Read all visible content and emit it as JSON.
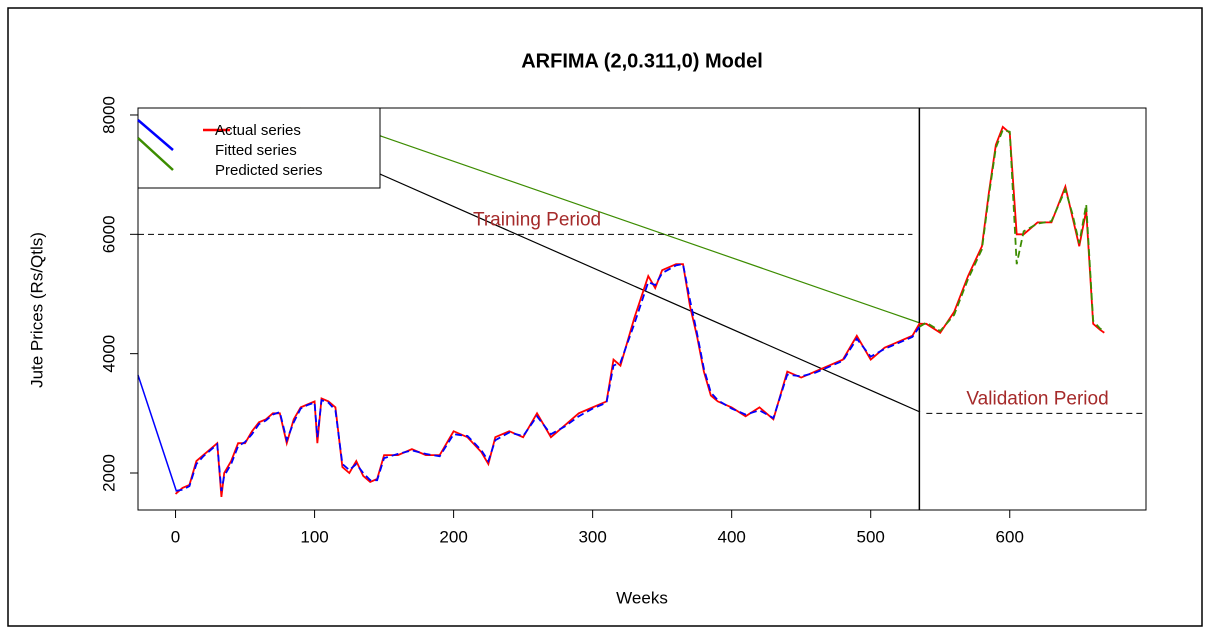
{
  "chart_data": {
    "type": "line",
    "title": "ARFIMA (2,0.311,0) Model",
    "xlabel": "Weeks",
    "ylabel": "Jute Prices (Rs/Qtls)",
    "xlim": [
      -27,
      698
    ],
    "ylim": [
      1380,
      8117
    ],
    "xticks": [
      0,
      100,
      200,
      300,
      400,
      500,
      600
    ],
    "yticks": [
      2000,
      4000,
      6000,
      8000
    ],
    "legend": "upper left",
    "annotations": [
      {
        "text": "Training Period",
        "x": 260,
        "y": 6000,
        "x_start": -27,
        "x_end": 530
      },
      {
        "text": "Validation Period",
        "x": 620,
        "y": 3000,
        "x_start": 540,
        "x_end": 698
      }
    ],
    "vline": 535,
    "series": [
      {
        "name": "Actual series",
        "color": "#ff0000",
        "style": "solid",
        "x": [
          0,
          5,
          10,
          15,
          20,
          25,
          30,
          33,
          35,
          40,
          45,
          50,
          55,
          60,
          65,
          70,
          75,
          80,
          85,
          90,
          95,
          100,
          102,
          105,
          110,
          115,
          120,
          125,
          130,
          135,
          140,
          145,
          150,
          160,
          170,
          180,
          190,
          200,
          210,
          220,
          225,
          230,
          240,
          250,
          260,
          270,
          280,
          290,
          300,
          310,
          315,
          320,
          330,
          340,
          345,
          350,
          360,
          365,
          370,
          375,
          380,
          385,
          390,
          400,
          410,
          420,
          430,
          440,
          450,
          460,
          470,
          480,
          490,
          500,
          510,
          520,
          530,
          535,
          540,
          550,
          560,
          570,
          580,
          585,
          590,
          595,
          600,
          605,
          610,
          620,
          630,
          640,
          645,
          650,
          655,
          660,
          665,
          668
        ],
        "values": [
          1650,
          1750,
          1800,
          2200,
          2300,
          2400,
          2500,
          1600,
          2000,
          2200,
          2500,
          2500,
          2700,
          2850,
          2900,
          3000,
          3000,
          2500,
          2900,
          3100,
          3150,
          3200,
          2500,
          3250,
          3200,
          3100,
          2100,
          2000,
          2200,
          1950,
          1850,
          1900,
          2300,
          2300,
          2400,
          2300,
          2300,
          2700,
          2600,
          2350,
          2150,
          2600,
          2700,
          2600,
          3000,
          2600,
          2800,
          3000,
          3100,
          3200,
          3900,
          3800,
          4600,
          5300,
          5100,
          5400,
          5500,
          5500,
          4800,
          4300,
          3700,
          3300,
          3200,
          3100,
          2950,
          3100,
          2900,
          3700,
          3600,
          3700,
          3800,
          3900,
          4300,
          3900,
          4100,
          4200,
          4300,
          4500,
          4500,
          4350,
          4700,
          5300,
          5800,
          6700,
          7500,
          7800,
          7700,
          6000,
          6000,
          6200,
          6200,
          6800,
          6300,
          5800,
          6400,
          4500,
          4400,
          4350
        ]
      },
      {
        "name": "Fitted series",
        "color": "#0000ff",
        "style": "dashed",
        "x": [
          0,
          5,
          10,
          15,
          20,
          25,
          30,
          33,
          35,
          40,
          45,
          50,
          55,
          60,
          65,
          70,
          75,
          80,
          85,
          90,
          95,
          100,
          102,
          105,
          110,
          115,
          120,
          125,
          130,
          135,
          140,
          145,
          150,
          160,
          170,
          180,
          190,
          200,
          210,
          220,
          225,
          230,
          240,
          250,
          260,
          270,
          280,
          290,
          300,
          310,
          315,
          320,
          330,
          340,
          345,
          350,
          360,
          365,
          370,
          375,
          380,
          385,
          390,
          400,
          410,
          420,
          430,
          440,
          450,
          460,
          470,
          480,
          490,
          500,
          510,
          520,
          530,
          535
        ],
        "values": [
          1700,
          1720,
          1780,
          2150,
          2280,
          2380,
          2480,
          1700,
          1950,
          2150,
          2450,
          2520,
          2650,
          2820,
          2880,
          2980,
          3020,
          2550,
          2850,
          3080,
          3140,
          3180,
          2600,
          3220,
          3180,
          3050,
          2150,
          2050,
          2150,
          2000,
          1880,
          1880,
          2250,
          2320,
          2380,
          2320,
          2280,
          2650,
          2620,
          2380,
          2200,
          2550,
          2680,
          2620,
          2950,
          2650,
          2780,
          2950,
          3080,
          3180,
          3800,
          3850,
          4500,
          5200,
          5150,
          5350,
          5480,
          5500,
          4900,
          4350,
          3750,
          3350,
          3220,
          3080,
          2980,
          3050,
          2920,
          3650,
          3620,
          3680,
          3780,
          3880,
          4250,
          3950,
          4080,
          4180,
          4280,
          4450
        ]
      },
      {
        "name": "Predicted series",
        "color": "#3c8c00",
        "style": "dashed",
        "x": [
          535,
          540,
          550,
          560,
          570,
          580,
          585,
          590,
          595,
          600,
          605,
          610,
          620,
          630,
          640,
          645,
          650,
          655,
          660,
          665,
          668
        ],
        "values": [
          4450,
          4520,
          4380,
          4650,
          5250,
          5750,
          6650,
          7450,
          7750,
          7720,
          5500,
          6050,
          6180,
          6220,
          6750,
          6350,
          5850,
          6500,
          4550,
          4420,
          4380
        ]
      }
    ]
  }
}
